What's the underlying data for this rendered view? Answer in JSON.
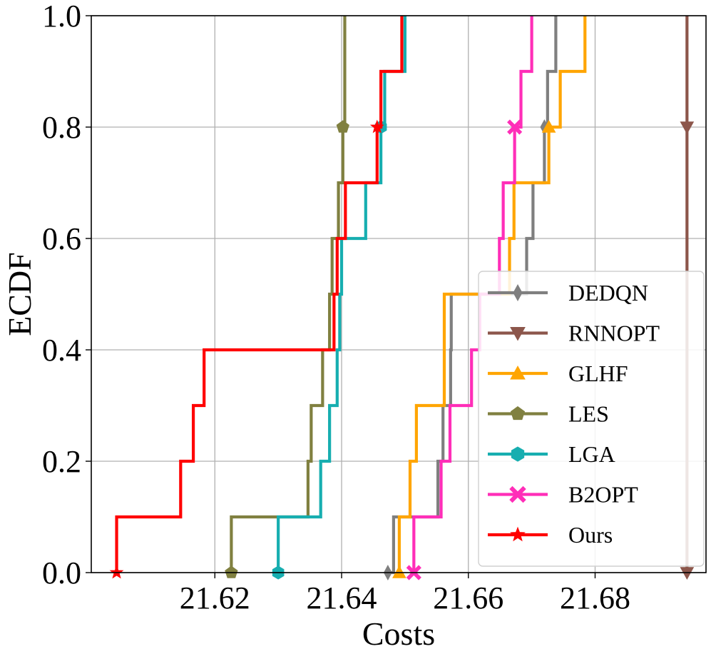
{
  "chart_data": {
    "type": "line",
    "step": true,
    "title": "",
    "xlabel": "Costs",
    "ylabel": "ECDF",
    "xlim": [
      21.6005,
      21.6975
    ],
    "ylim": [
      0.0,
      1.0
    ],
    "xticks": [
      21.62,
      21.64,
      21.66,
      21.68
    ],
    "yticks": [
      0.0,
      0.2,
      0.4,
      0.6,
      0.8,
      1.0
    ],
    "xtick_labels": [
      "21.62",
      "21.64",
      "21.66",
      "21.68"
    ],
    "ytick_labels": [
      "0.0",
      "0.2",
      "0.4",
      "0.6",
      "0.8",
      "1.0"
    ],
    "grid": true,
    "legend_position": "lower-right",
    "series": [
      {
        "name": "DEDQN",
        "color": "#7f7f7f",
        "marker": "diamond",
        "x": [
          21.6473,
          21.6482,
          21.6552,
          21.656,
          21.6572,
          21.6573,
          21.6692,
          21.6702,
          21.672,
          21.6725,
          21.6738
        ]
      },
      {
        "name": "RNNOPT",
        "color": "#8c564b",
        "marker": "triangle-down",
        "x": [
          21.6945,
          21.6945,
          21.6945,
          21.6945,
          21.6945,
          21.6945,
          21.6945,
          21.6945,
          21.6945,
          21.6945,
          21.6945
        ]
      },
      {
        "name": "GLHF",
        "color": "#ffa500",
        "marker": "triangle-up",
        "x": [
          21.6491,
          21.6491,
          21.6508,
          21.6518,
          21.6562,
          21.6562,
          21.6665,
          21.6672,
          21.6727,
          21.6745,
          21.6784
        ]
      },
      {
        "name": "LES",
        "color": "#808040",
        "marker": "pentagon",
        "x": [
          21.6226,
          21.6226,
          21.6347,
          21.6352,
          21.637,
          21.6381,
          21.6385,
          21.6395,
          21.6402,
          21.6405,
          21.6405
        ]
      },
      {
        "name": "LGA",
        "color": "#17aeb0",
        "marker": "hexagon",
        "x": [
          21.63,
          21.63,
          21.6367,
          21.6381,
          21.6393,
          21.6397,
          21.64,
          21.6438,
          21.6462,
          21.6468,
          21.65
        ]
      },
      {
        "name": "B2OPT",
        "color": "#ff2eb8",
        "marker": "x",
        "x": [
          21.6514,
          21.6514,
          21.6557,
          21.6571,
          21.6605,
          21.6618,
          21.6649,
          21.6655,
          21.6673,
          21.6683,
          21.67
        ]
      },
      {
        "name": "Ours",
        "color": "#ff0000",
        "marker": "star",
        "x": [
          21.6045,
          21.6045,
          21.6146,
          21.6166,
          21.6183,
          21.6388,
          21.6393,
          21.6406,
          21.6456,
          21.6462,
          21.6495
        ]
      }
    ]
  }
}
